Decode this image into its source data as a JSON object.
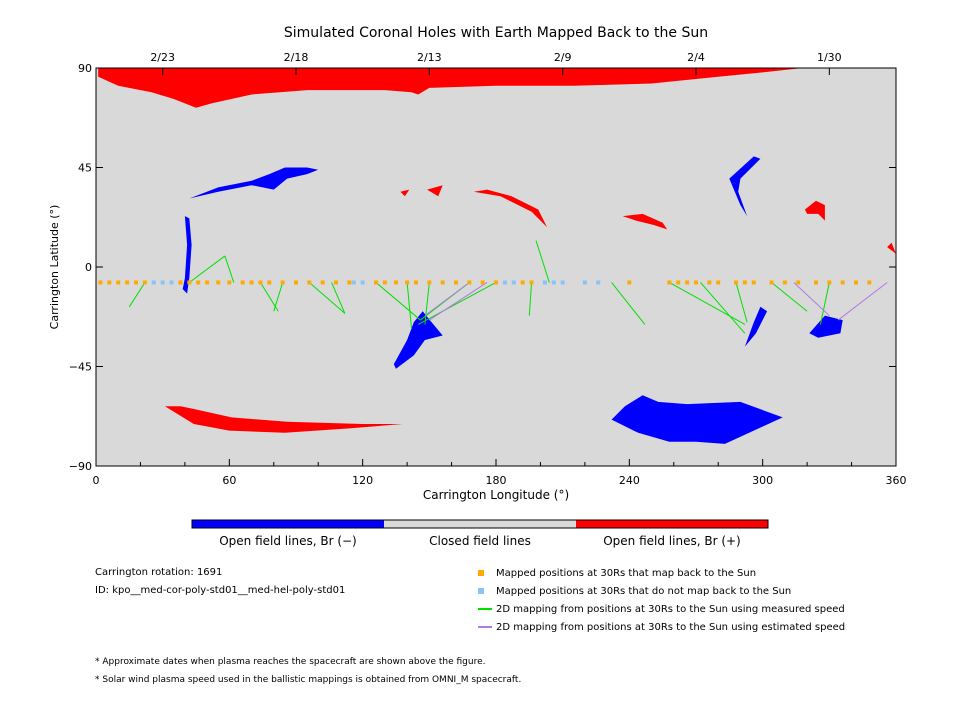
{
  "chart_data": {
    "type": "scatter",
    "title": "Simulated Coronal Holes with Earth Mapped Back to the Sun",
    "xlabel": "Carrington Longitude (°)",
    "ylabel": "Carrington Latitude (°)",
    "xlim": [
      0,
      360
    ],
    "ylim": [
      -90,
      90
    ],
    "x_ticks": [
      0,
      60,
      120,
      180,
      240,
      300,
      360
    ],
    "y_ticks": [
      90,
      45,
      0,
      -45,
      -90
    ],
    "y_tick_labels": [
      "90",
      "45",
      "0",
      "−45",
      "−90"
    ],
    "top_axis": [
      {
        "lon": 30,
        "label": "2/23"
      },
      {
        "lon": 90,
        "label": "2/18"
      },
      {
        "lon": 150,
        "label": "2/13"
      },
      {
        "lon": 210,
        "label": "2/9"
      },
      {
        "lon": 270,
        "label": "2/4"
      },
      {
        "lon": 330,
        "label": "1/30"
      }
    ],
    "colors": {
      "background": "#d9d9d9",
      "negative": "#0000ff",
      "positive": "#ff0000",
      "mapped": "#ffaa00",
      "unmapped": "#88c4f8",
      "measured": "#00e000",
      "estimated": "#b07ae8"
    },
    "coronal_holes": [
      {
        "polarity": "positive",
        "points": [
          [
            1,
            86
          ],
          [
            10,
            82
          ],
          [
            25,
            79
          ],
          [
            35,
            76
          ],
          [
            45,
            72
          ],
          [
            52,
            74
          ],
          [
            70,
            78
          ],
          [
            95,
            80
          ],
          [
            130,
            80
          ],
          [
            142,
            79
          ],
          [
            145,
            78
          ],
          [
            150,
            81
          ],
          [
            180,
            82
          ],
          [
            215,
            82
          ],
          [
            250,
            83
          ],
          [
            280,
            86
          ],
          [
            300,
            88
          ],
          [
            318,
            90
          ],
          [
            1,
            90
          ]
        ]
      },
      {
        "polarity": "negative",
        "points": [
          [
            42,
            31
          ],
          [
            55,
            36
          ],
          [
            70,
            39
          ],
          [
            78,
            42
          ],
          [
            85,
            45
          ],
          [
            95,
            45
          ],
          [
            100,
            44
          ],
          [
            95,
            42
          ],
          [
            86,
            40
          ],
          [
            80,
            35
          ],
          [
            70,
            37
          ],
          [
            55,
            34
          ]
        ]
      },
      {
        "polarity": "negative",
        "points": [
          [
            39,
            -10
          ],
          [
            40,
            -5
          ],
          [
            41,
            10
          ],
          [
            40,
            23
          ],
          [
            42,
            22
          ],
          [
            43,
            10
          ],
          [
            42,
            -5
          ],
          [
            41,
            -12
          ]
        ]
      },
      {
        "polarity": "positive",
        "points": [
          [
            137,
            34
          ],
          [
            141,
            35
          ],
          [
            139,
            32
          ]
        ]
      },
      {
        "polarity": "positive",
        "points": [
          [
            149,
            35
          ],
          [
            156,
            37
          ],
          [
            154,
            32
          ]
        ]
      },
      {
        "polarity": "positive",
        "points": [
          [
            170,
            34
          ],
          [
            182,
            32
          ],
          [
            196,
            25
          ],
          [
            203,
            18
          ],
          [
            199,
            26
          ],
          [
            187,
            32
          ],
          [
            176,
            35
          ]
        ]
      },
      {
        "polarity": "positive",
        "points": [
          [
            237,
            23
          ],
          [
            246,
            24
          ],
          [
            255,
            20
          ],
          [
            257,
            17
          ],
          [
            251,
            19
          ],
          [
            243,
            21
          ]
        ]
      },
      {
        "polarity": "positive",
        "points": [
          [
            319,
            26
          ],
          [
            324,
            30
          ],
          [
            328,
            28
          ],
          [
            328,
            21
          ],
          [
            325,
            24
          ],
          [
            320,
            24
          ]
        ]
      },
      {
        "polarity": "positive",
        "points": [
          [
            356,
            9
          ],
          [
            360,
            6
          ],
          [
            358,
            11
          ]
        ]
      },
      {
        "polarity": "negative",
        "points": [
          [
            285,
            40
          ],
          [
            296,
            50
          ],
          [
            299,
            49
          ],
          [
            290,
            40
          ],
          [
            289,
            34
          ],
          [
            293,
            23
          ],
          [
            290,
            28
          ]
        ]
      },
      {
        "polarity": "negative",
        "points": [
          [
            134,
            -44
          ],
          [
            140,
            -33
          ],
          [
            143,
            -25
          ],
          [
            147,
            -20
          ],
          [
            151,
            -25
          ],
          [
            156,
            -31
          ],
          [
            148,
            -33
          ],
          [
            143,
            -40
          ],
          [
            135,
            -46
          ]
        ]
      },
      {
        "polarity": "negative",
        "points": [
          [
            292,
            -36
          ],
          [
            296,
            -25
          ],
          [
            299,
            -18
          ],
          [
            302,
            -20
          ],
          [
            297,
            -30
          ]
        ]
      },
      {
        "polarity": "negative",
        "points": [
          [
            321,
            -30
          ],
          [
            328,
            -22
          ],
          [
            336,
            -24
          ],
          [
            335,
            -30
          ],
          [
            325,
            -32
          ]
        ]
      },
      {
        "polarity": "negative",
        "points": [
          [
            238,
            -63
          ],
          [
            246,
            -58
          ],
          [
            253,
            -61
          ],
          [
            266,
            -62
          ],
          [
            290,
            -61
          ],
          [
            309,
            -68
          ],
          [
            296,
            -74
          ],
          [
            283,
            -80
          ],
          [
            270,
            -79
          ],
          [
            258,
            -79
          ],
          [
            244,
            -75
          ],
          [
            232,
            -69
          ]
        ]
      },
      {
        "polarity": "positive",
        "points": [
          [
            31,
            -63
          ],
          [
            38,
            -63
          ],
          [
            43,
            -64
          ],
          [
            61,
            -68
          ],
          [
            86,
            -70
          ],
          [
            120,
            -71
          ],
          [
            138,
            -71
          ],
          [
            114,
            -73
          ],
          [
            85,
            -75
          ],
          [
            60,
            -74
          ],
          [
            44,
            -71
          ]
        ]
      }
    ],
    "mapping_positions": {
      "latitude": -7,
      "mapped_lons": [
        2,
        6,
        10,
        14,
        18,
        22,
        38,
        42,
        46,
        50,
        55,
        60,
        66,
        70,
        74,
        78,
        84,
        90,
        96,
        102,
        108,
        114,
        126,
        130,
        135,
        140,
        144,
        150,
        156,
        162,
        168,
        174,
        180,
        192,
        196,
        240,
        258,
        262,
        266,
        270,
        276,
        280,
        288,
        292,
        296,
        304,
        310,
        316,
        324,
        330,
        336,
        342,
        348
      ],
      "unmapped_lons": [
        26,
        30,
        34,
        116,
        120,
        184,
        188,
        202,
        206,
        210,
        220,
        226
      ],
      "measured_lines": [
        [
          [
            22,
            -7
          ],
          [
            15,
            -18
          ]
        ],
        [
          [
            42,
            -7
          ],
          [
            58,
            5
          ]
        ],
        [
          [
            58,
            5
          ],
          [
            62,
            -7
          ]
        ],
        [
          [
            74,
            -7
          ],
          [
            82,
            -20
          ]
        ],
        [
          [
            84,
            -7
          ],
          [
            80,
            -20
          ]
        ],
        [
          [
            96,
            -7
          ],
          [
            112,
            -21
          ]
        ],
        [
          [
            106,
            -7
          ],
          [
            112,
            -21
          ]
        ],
        [
          [
            126,
            -7
          ],
          [
            146,
            -24
          ]
        ],
        [
          [
            140,
            -7
          ],
          [
            142,
            -28
          ]
        ],
        [
          [
            150,
            -7
          ],
          [
            148,
            -26
          ]
        ],
        [
          [
            168,
            -7
          ],
          [
            146,
            -24
          ]
        ],
        [
          [
            180,
            -7
          ],
          [
            145,
            -26
          ]
        ],
        [
          [
            196,
            -7
          ],
          [
            195,
            -22
          ]
        ],
        [
          [
            204,
            -7
          ],
          [
            198,
            12
          ]
        ],
        [
          [
            232,
            -7
          ],
          [
            247,
            -26
          ]
        ],
        [
          [
            258,
            -7
          ],
          [
            292,
            -26
          ]
        ],
        [
          [
            272,
            -7
          ],
          [
            292,
            -30
          ]
        ],
        [
          [
            288,
            -7
          ],
          [
            293,
            -25
          ]
        ],
        [
          [
            304,
            -7
          ],
          [
            320,
            -20
          ]
        ],
        [
          [
            330,
            -7
          ],
          [
            326,
            -26
          ]
        ]
      ],
      "estimated_lines": [
        [
          [
            168,
            -7
          ],
          [
            148,
            -22
          ]
        ],
        [
          [
            176,
            -7
          ],
          [
            150,
            -24
          ]
        ],
        [
          [
            314,
            -7
          ],
          [
            330,
            -22
          ]
        ],
        [
          [
            356,
            -7
          ],
          [
            334,
            -24
          ]
        ]
      ]
    }
  },
  "colorbar": {
    "neg_label": "Open field lines, Br (−)",
    "closed_label": "Closed field lines",
    "pos_label": "Open field lines, Br (+)"
  },
  "info": {
    "rotation": "Carrington rotation: 1691",
    "id": "ID: kpo__med-cor-poly-std01__med-hel-poly-std01"
  },
  "legend": [
    {
      "label": "Mapped positions at 30Rs that map back to the Sun",
      "kind": "dot",
      "color": "#ffaa00"
    },
    {
      "label": "Mapped positions at 30Rs that do not map back to the Sun",
      "kind": "dot",
      "color": "#88c4f8"
    },
    {
      "label": "2D mapping from positions at 30Rs to the Sun using measured speed",
      "kind": "line",
      "color": "#00e000"
    },
    {
      "label": "2D mapping from positions at 30Rs to the Sun using estimated speed",
      "kind": "line",
      "color": "#b07ae8"
    }
  ],
  "notes": [
    "* Approximate dates when plasma reaches the spacecraft are shown above the figure.",
    "* Solar wind plasma speed used in the ballistic mappings is obtained from OMNI_M spacecraft."
  ]
}
